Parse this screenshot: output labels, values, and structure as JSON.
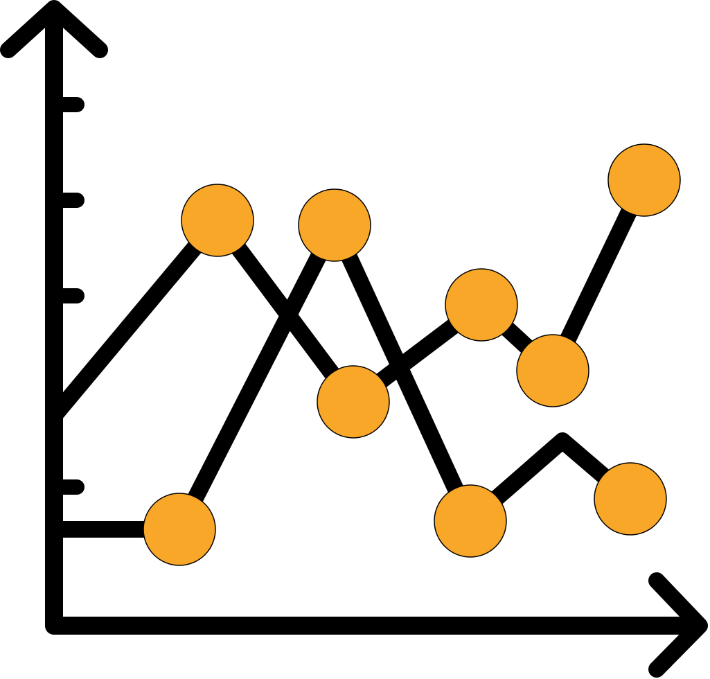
{
  "icon": {
    "name": "line-chart-icon",
    "stroke_color": "#000000",
    "marker_fill": "#F8A728",
    "marker_outline": "#000000",
    "background": "#FFFFFF"
  }
}
